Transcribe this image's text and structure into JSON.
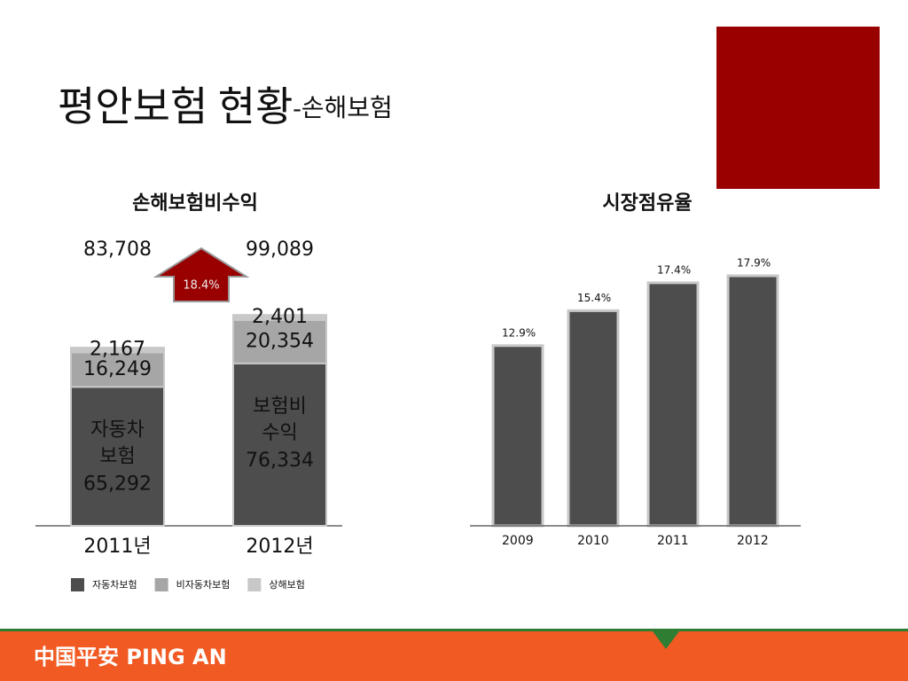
{
  "header": {
    "title": "평안보험 현황",
    "subtitle": "-손해보험"
  },
  "footer": {
    "logo": "中国平安 PING AN"
  },
  "chart_data": [
    {
      "type": "stacked-bar",
      "title": "손해보험비수익",
      "categories": [
        "2011년",
        "2012년"
      ],
      "series": [
        {
          "name": "자동차보험",
          "color": "#4d4d4d",
          "values": [
            65292,
            76334
          ],
          "value_labels": [
            "65,292",
            "76,334"
          ]
        },
        {
          "name": "비자동차보험",
          "color": "#a6a6a6",
          "values": [
            16249,
            20354
          ],
          "value_labels": [
            "16,249",
            "20,354"
          ]
        },
        {
          "name": "상해보험",
          "color": "#c8c8c8",
          "values": [
            2167,
            2401
          ],
          "value_labels": [
            "2,167",
            "2,401"
          ]
        }
      ],
      "inner_labels": [
        [
          "자동차",
          "보험"
        ],
        [
          "보험비",
          "수익"
        ]
      ],
      "totals": {
        "values": [
          83708,
          99089
        ],
        "value_labels": [
          "83,708",
          "99,089"
        ]
      },
      "growth": {
        "value": 18.4,
        "label": "18.4%"
      },
      "legend": "bottom"
    },
    {
      "type": "bar",
      "title": "시장점유율",
      "categories": [
        "2009",
        "2010",
        "2011",
        "2012"
      ],
      "values": [
        12.9,
        15.4,
        17.4,
        17.9
      ],
      "value_labels": [
        "12.9%",
        "15.4%",
        "17.4%",
        "17.9%"
      ],
      "color": "#4d4d4d"
    }
  ]
}
